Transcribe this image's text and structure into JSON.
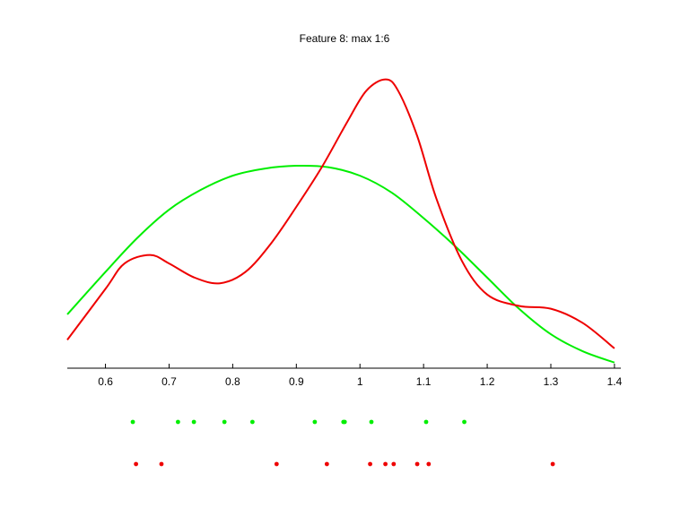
{
  "chart_data": {
    "type": "line",
    "title": "Feature 8: max 1:6",
    "xlabel": "",
    "ylabel": "",
    "xlim": [
      0.54,
      1.41
    ],
    "ylim": [
      0,
      1.0
    ],
    "xticks": [
      0.6,
      0.7,
      0.8,
      0.9,
      1.0,
      1.1,
      1.2,
      1.3,
      1.4
    ],
    "xtick_labels": [
      "0.6",
      "0.7",
      "0.8",
      "0.9",
      "1",
      "1.1",
      "1.2",
      "1.3",
      "1.4"
    ],
    "grid": false,
    "series": [
      {
        "color": "#00ee00",
        "x": [
          0.54,
          0.6,
          0.65,
          0.7,
          0.75,
          0.8,
          0.85,
          0.9,
          0.95,
          1.0,
          1.05,
          1.1,
          1.15,
          1.2,
          1.25,
          1.3,
          1.35,
          1.4
        ],
        "y": [
          0.19,
          0.34,
          0.46,
          0.56,
          0.63,
          0.68,
          0.705,
          0.715,
          0.71,
          0.68,
          0.62,
          0.53,
          0.43,
          0.32,
          0.21,
          0.12,
          0.06,
          0.02
        ],
        "points": [
          0.643,
          0.714,
          0.739,
          0.787,
          0.831,
          0.929,
          0.974,
          0.976,
          1.018,
          1.104,
          1.164
        ]
      },
      {
        "color": "#ee0000",
        "x": [
          0.54,
          0.6,
          0.63,
          0.67,
          0.7,
          0.74,
          0.78,
          0.82,
          0.86,
          0.9,
          0.94,
          0.98,
          1.01,
          1.04,
          1.06,
          1.09,
          1.12,
          1.16,
          1.2,
          1.25,
          1.3,
          1.35,
          1.4
        ],
        "y": [
          0.1,
          0.28,
          0.37,
          0.4,
          0.37,
          0.32,
          0.3,
          0.34,
          0.44,
          0.57,
          0.71,
          0.87,
          0.98,
          1.02,
          0.98,
          0.82,
          0.6,
          0.38,
          0.26,
          0.22,
          0.21,
          0.16,
          0.07
        ],
        "points": [
          0.648,
          0.688,
          0.869,
          0.948,
          1.016,
          1.04,
          1.053,
          1.09,
          1.108,
          1.303
        ]
      }
    ]
  }
}
